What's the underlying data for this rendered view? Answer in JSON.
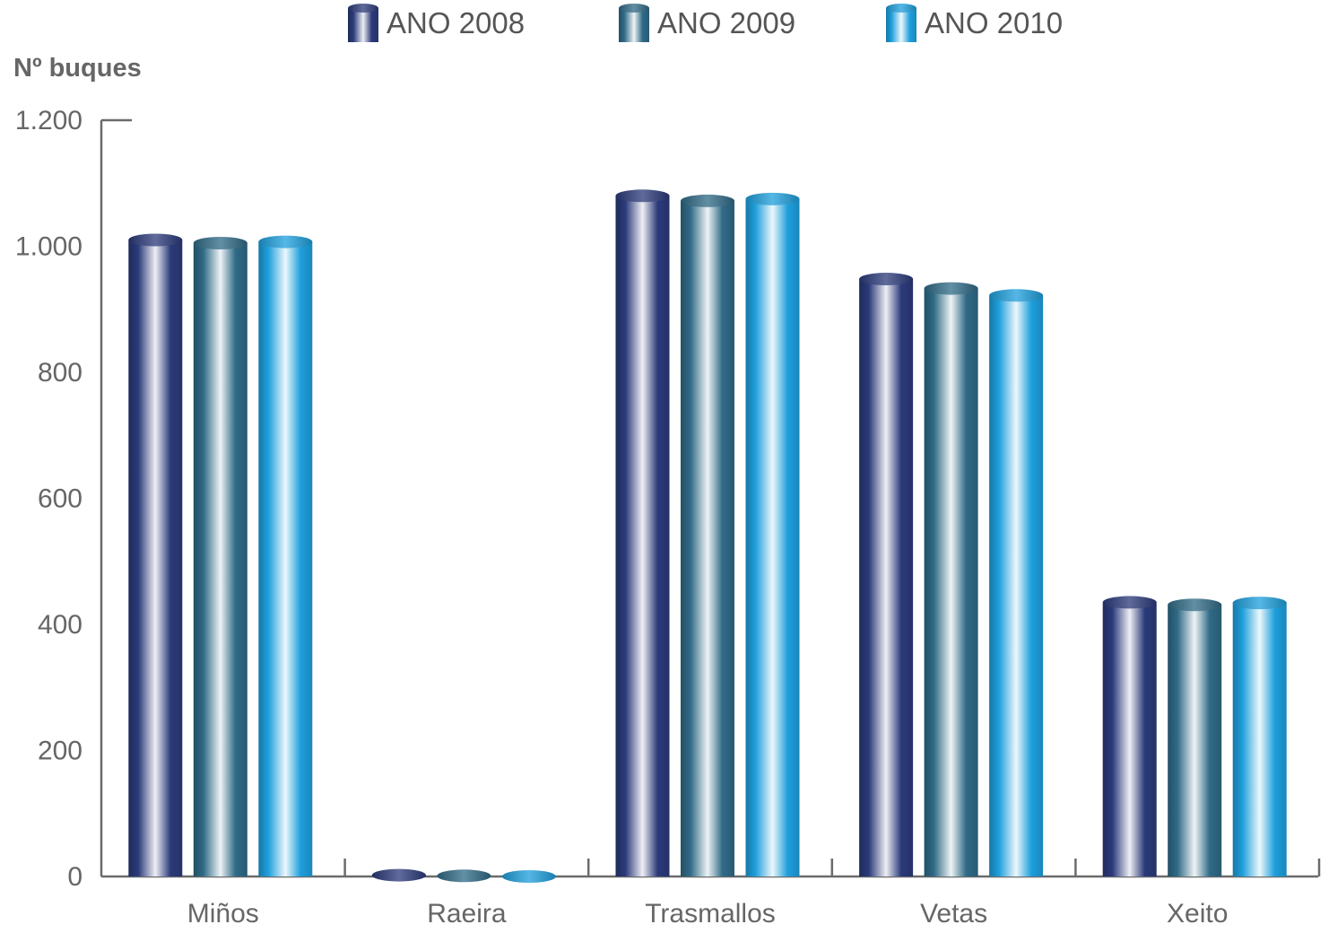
{
  "chart_data": {
    "type": "bar",
    "ylabel": "Nº buques",
    "xlabel": "",
    "ylim": [
      0,
      1200
    ],
    "yticks": [
      0,
      200,
      400,
      600,
      800,
      1000,
      1200
    ],
    "ytick_labels": [
      "0",
      "200",
      "400",
      "600",
      "800",
      "1.000",
      "1.200"
    ],
    "categories": [
      "Miños",
      "Raeira",
      "Trasmallos",
      "Vetas",
      "Xeito"
    ],
    "series": [
      {
        "name": "ANO 2008",
        "values": [
          1010,
          2,
          1080,
          948,
          435
        ],
        "color": "#2b3a7a"
      },
      {
        "name": "ANO 2009",
        "values": [
          1005,
          1,
          1072,
          933,
          431
        ],
        "color": "#2f6a86"
      },
      {
        "name": "ANO 2010",
        "values": [
          1007,
          0,
          1075,
          922,
          434
        ],
        "color": "#1e9fdc"
      }
    ],
    "legend_position": "top",
    "grid": false
  }
}
